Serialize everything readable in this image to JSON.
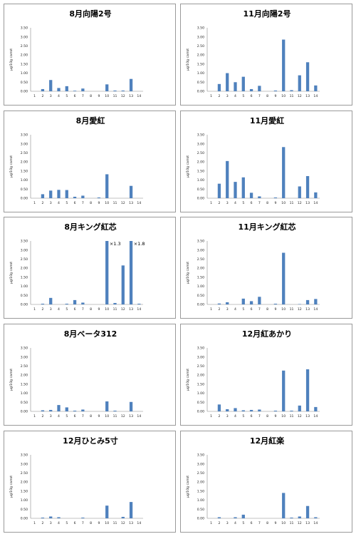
{
  "chart_data": [
    {
      "type": "bar",
      "title": "8月向陽2号",
      "ylabel": "μg/10g carrot",
      "ylim": [
        0,
        3.5
      ],
      "yticks": [
        "0.00",
        "0.50",
        "1.00",
        "1.50",
        "2.00",
        "2.50",
        "3.00",
        "3.50"
      ],
      "categories": [
        "1",
        "2",
        "3",
        "4",
        "5",
        "6",
        "7",
        "8",
        "9",
        "10",
        "11",
        "12",
        "13",
        "14"
      ],
      "values": [
        0,
        0.12,
        0.62,
        0.18,
        0.28,
        0.03,
        0.15,
        0,
        0,
        0.38,
        0.04,
        0.04,
        0.68,
        0
      ],
      "annotations": []
    },
    {
      "type": "bar",
      "title": "11月向陽2号",
      "ylabel": "μg/10g carrot",
      "ylim": [
        0,
        3.5
      ],
      "yticks": [
        "0.00",
        "0.50",
        "1.00",
        "1.50",
        "2.00",
        "2.50",
        "3.00",
        "3.50"
      ],
      "categories": [
        "1",
        "2",
        "3",
        "4",
        "5",
        "6",
        "7",
        "8",
        "9",
        "10",
        "11",
        "12",
        "13",
        "14"
      ],
      "values": [
        0,
        0.4,
        1.0,
        0.5,
        0.8,
        0.12,
        0.3,
        0,
        0.04,
        2.85,
        0.06,
        0.88,
        1.6,
        0.32
      ],
      "annotations": []
    },
    {
      "type": "bar",
      "title": "8月愛紅",
      "ylabel": "μg/10g carrot",
      "ylim": [
        0,
        3.5
      ],
      "yticks": [
        "0.00",
        "0.50",
        "1.00",
        "1.50",
        "2.00",
        "2.50",
        "3.00",
        "3.50"
      ],
      "categories": [
        "1",
        "2",
        "3",
        "4",
        "5",
        "6",
        "7",
        "8",
        "9",
        "10",
        "11",
        "12",
        "13",
        "14"
      ],
      "values": [
        0,
        0.22,
        0.42,
        0.46,
        0.45,
        0.08,
        0.14,
        0,
        0.04,
        1.32,
        0,
        0,
        0.68,
        0
      ],
      "annotations": []
    },
    {
      "type": "bar",
      "title": "11月愛紅",
      "ylabel": "μg/10g carrot",
      "ylim": [
        0,
        3.5
      ],
      "yticks": [
        "0.00",
        "0.50",
        "1.00",
        "1.50",
        "2.00",
        "2.50",
        "3.00",
        "3.50"
      ],
      "categories": [
        "1",
        "2",
        "3",
        "4",
        "5",
        "6",
        "7",
        "8",
        "9",
        "10",
        "11",
        "12",
        "13",
        "14"
      ],
      "values": [
        0,
        0.8,
        2.05,
        0.9,
        1.15,
        0.3,
        0.1,
        0,
        0.04,
        2.82,
        0,
        0.65,
        1.22,
        0.32
      ],
      "annotations": []
    },
    {
      "type": "bar",
      "title": "8月キング紅芯",
      "ylabel": "μg/10g carrot",
      "ylim": [
        0,
        3.5
      ],
      "yticks": [
        "0.00",
        "0.50",
        "1.00",
        "1.50",
        "2.00",
        "2.50",
        "3.00",
        "3.50"
      ],
      "categories": [
        "1",
        "2",
        "3",
        "4",
        "5",
        "6",
        "7",
        "8",
        "9",
        "10",
        "11",
        "12",
        "13",
        "14"
      ],
      "values": [
        0,
        0.04,
        0.36,
        0,
        0.04,
        0.24,
        0.1,
        0,
        0,
        3.5,
        0.08,
        2.15,
        3.5,
        0.04
      ],
      "annotations": [
        {
          "category": "10",
          "text": "×1.3"
        },
        {
          "category": "13",
          "text": "×1.8"
        }
      ]
    },
    {
      "type": "bar",
      "title": "11月キング紅芯",
      "ylabel": "μg/10g carrot",
      "ylim": [
        0,
        3.5
      ],
      "yticks": [
        "0.00",
        "0.50",
        "1.00",
        "1.50",
        "2.00",
        "2.50",
        "3.00",
        "3.50"
      ],
      "categories": [
        "1",
        "2",
        "3",
        "4",
        "5",
        "6",
        "7",
        "8",
        "9",
        "10",
        "11",
        "12",
        "13",
        "14"
      ],
      "values": [
        0,
        0.05,
        0.12,
        0,
        0.32,
        0.18,
        0.42,
        0,
        0.04,
        2.85,
        0,
        0.02,
        0.24,
        0.3
      ],
      "annotations": []
    },
    {
      "type": "bar",
      "title": "8月ベータ312",
      "ylabel": "μg/10g carrot",
      "ylim": [
        0,
        3.5
      ],
      "yticks": [
        "0.00",
        "0.50",
        "1.00",
        "1.50",
        "2.00",
        "2.50",
        "3.00",
        "3.50"
      ],
      "categories": [
        "1",
        "2",
        "3",
        "4",
        "5",
        "6",
        "7",
        "8",
        "9",
        "10",
        "11",
        "12",
        "13",
        "14"
      ],
      "values": [
        0,
        0.06,
        0.08,
        0.35,
        0.22,
        0.04,
        0.1,
        0,
        0,
        0.55,
        0.04,
        0,
        0.52,
        0
      ],
      "annotations": []
    },
    {
      "type": "bar",
      "title": "12月紅あかり",
      "ylabel": "μg/10g carrot",
      "ylim": [
        0,
        3.5
      ],
      "yticks": [
        "0.00",
        "0.50",
        "1.00",
        "1.50",
        "2.00",
        "2.50",
        "3.00",
        "3.50"
      ],
      "categories": [
        "1",
        "2",
        "3",
        "4",
        "5",
        "6",
        "7",
        "8",
        "9",
        "10",
        "11",
        "12",
        "13",
        "14"
      ],
      "values": [
        0,
        0.38,
        0.12,
        0.18,
        0.06,
        0.08,
        0.1,
        0,
        0.04,
        2.25,
        0.04,
        0.32,
        2.32,
        0.24
      ],
      "annotations": []
    },
    {
      "type": "bar",
      "title": "12月ひとみ5寸",
      "ylabel": "μg/10g carrot",
      "ylim": [
        0,
        3.5
      ],
      "yticks": [
        "0.00",
        "0.50",
        "1.00",
        "1.50",
        "2.00",
        "2.50",
        "3.00",
        "3.50"
      ],
      "categories": [
        "1",
        "2",
        "3",
        "4",
        "5",
        "6",
        "7",
        "8",
        "9",
        "10",
        "11",
        "12",
        "13",
        "14"
      ],
      "values": [
        0,
        0.04,
        0.1,
        0.06,
        0,
        0,
        0.04,
        0,
        0,
        0.7,
        0,
        0.08,
        0.9,
        0
      ],
      "annotations": []
    },
    {
      "type": "bar",
      "title": "12月紅楽",
      "ylabel": "μg/10g carrot",
      "ylim": [
        0,
        3.5
      ],
      "yticks": [
        "0.00",
        "0.50",
        "1.00",
        "1.50",
        "2.00",
        "2.50",
        "3.00",
        "3.50"
      ],
      "categories": [
        "1",
        "2",
        "3",
        "4",
        "5",
        "6",
        "7",
        "8",
        "9",
        "10",
        "11",
        "12",
        "13",
        "14"
      ],
      "values": [
        0,
        0.06,
        0,
        0.06,
        0.2,
        0,
        0,
        0,
        0,
        1.4,
        0.04,
        0.1,
        0.68,
        0.06
      ],
      "annotations": []
    }
  ],
  "colors": {
    "bar": "#4f81bd",
    "axis": "#888888",
    "grid": "#d9d9d9"
  }
}
